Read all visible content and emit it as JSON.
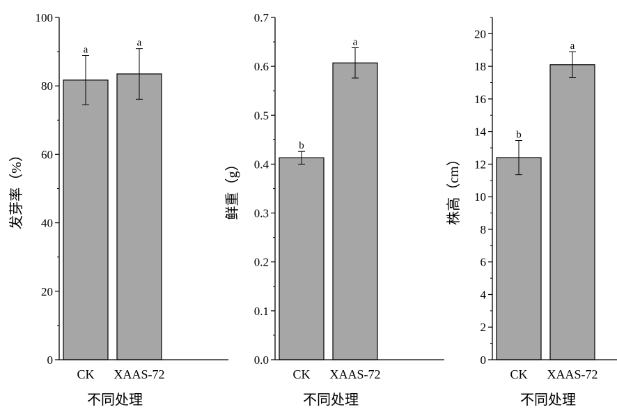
{
  "colors": {
    "bar_fill": "#a6a6a6",
    "stroke": "#000000",
    "background": "#ffffff"
  },
  "chart_data": [
    {
      "type": "bar",
      "categories": [
        "CK",
        "XAAS-72"
      ],
      "values": [
        81.7,
        83.5
      ],
      "error": [
        7.2,
        7.4
      ],
      "significance": [
        "a",
        "a"
      ],
      "ylabel": "发芽率（%）",
      "xlabel": "不同处理",
      "ylim": [
        0,
        100
      ],
      "yticks": [
        0,
        20,
        40,
        60,
        80,
        100
      ],
      "ytick_labels": [
        "0",
        "20",
        "40",
        "60",
        "80",
        "100"
      ],
      "grid": false
    },
    {
      "type": "bar",
      "categories": [
        "CK",
        "XAAS-72"
      ],
      "values": [
        0.413,
        0.607
      ],
      "error": [
        0.013,
        0.031
      ],
      "significance": [
        "b",
        "a"
      ],
      "ylabel": "鲜重（g）",
      "xlabel": "不同处理",
      "ylim": [
        0,
        0.7
      ],
      "yticks": [
        0,
        0.1,
        0.2,
        0.3,
        0.4,
        0.5,
        0.6,
        0.7
      ],
      "ytick_labels": [
        "0.0",
        "0.1",
        "0.2",
        "0.3",
        "0.4",
        "0.5",
        "0.6",
        "0.7"
      ],
      "grid": false
    },
    {
      "type": "bar",
      "categories": [
        "CK",
        "XAAS-72"
      ],
      "values": [
        12.4,
        18.1
      ],
      "error": [
        1.05,
        0.8
      ],
      "significance": [
        "b",
        "a"
      ],
      "ylabel": "株高（cm）",
      "xlabel": "不同处理",
      "ylim": [
        0,
        21
      ],
      "yticks": [
        0,
        2,
        4,
        6,
        8,
        10,
        12,
        14,
        16,
        18,
        20
      ],
      "ytick_labels": [
        "0",
        "2",
        "4",
        "6",
        "8",
        "10",
        "12",
        "14",
        "16",
        "18",
        "20"
      ],
      "grid": false
    }
  ]
}
